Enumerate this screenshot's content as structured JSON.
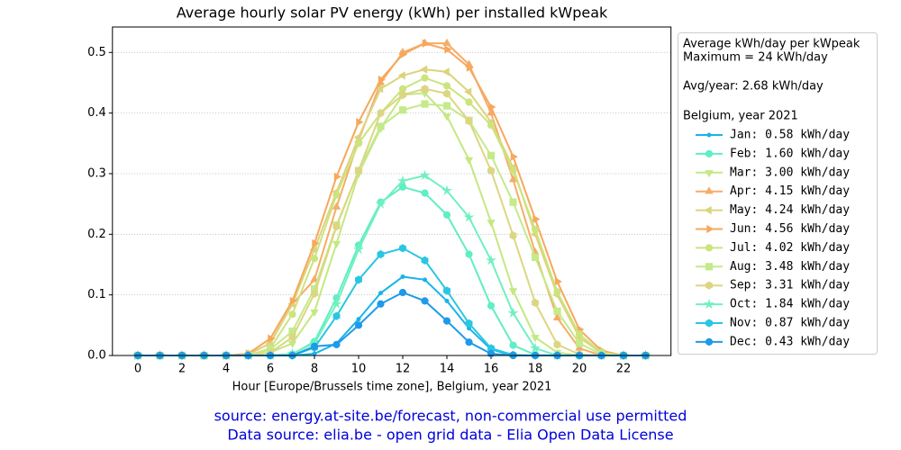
{
  "chart_data": {
    "type": "line",
    "title": "Average hourly solar PV energy (kWh) per installed kWpeak",
    "xlabel": "Hour [Europe/Brussels time zone], Belgium, year 2021",
    "x": [
      0,
      1,
      2,
      3,
      4,
      5,
      6,
      7,
      8,
      9,
      10,
      11,
      12,
      13,
      14,
      15,
      16,
      17,
      18,
      19,
      20,
      21,
      22,
      23
    ],
    "xlim": [
      -1.15,
      24.15
    ],
    "xticks": [
      0,
      2,
      4,
      6,
      8,
      10,
      12,
      14,
      16,
      18,
      20,
      22
    ],
    "ylim": [
      0,
      0.542
    ],
    "yticks": [
      {
        "value": 0,
        "label": "0.0"
      },
      0.1,
      0.2,
      0.3,
      0.4,
      0.5
    ],
    "grid": true,
    "legend_title": [
      "Average kWh/day per kWpeak",
      "Maximum = 24 kWh/day",
      "Avg/year: 2.68 kWh/day",
      "Belgium, year 2021"
    ],
    "legend": "right outside",
    "series": [
      {
        "name": "Jan: 0.58 kWh/day",
        "color": "#19b4e8",
        "marker": "point",
        "values": [
          0,
          0,
          0,
          0,
          0,
          0,
          0,
          0,
          0.003,
          0.02,
          0.06,
          0.103,
          0.13,
          0.125,
          0.09,
          0.045,
          0.01,
          0,
          0,
          0,
          0,
          0,
          0,
          0
        ]
      },
      {
        "name": "Feb: 1.60 kWh/day",
        "color": "#60eec4",
        "marker": "circle",
        "values": [
          0,
          0,
          0,
          0,
          0,
          0,
          0,
          0.002,
          0.023,
          0.095,
          0.182,
          0.253,
          0.278,
          0.268,
          0.232,
          0.167,
          0.082,
          0.017,
          0.001,
          0,
          0,
          0,
          0,
          0
        ]
      },
      {
        "name": "Mar: 3.00 kWh/day",
        "color": "#c4e882",
        "marker": "triangle_down",
        "values": [
          0,
          0,
          0,
          0,
          0,
          0,
          0.005,
          0.02,
          0.072,
          0.185,
          0.3,
          0.375,
          0.43,
          0.433,
          0.395,
          0.323,
          0.22,
          0.107,
          0.03,
          0.005,
          0,
          0,
          0,
          0
        ]
      },
      {
        "name": "Apr: 4.15 kWh/day",
        "color": "#f6ac68",
        "marker": "triangle_up",
        "values": [
          0,
          0,
          0,
          0,
          0,
          0.002,
          0.02,
          0.085,
          0.125,
          0.245,
          0.355,
          0.45,
          0.5,
          0.515,
          0.515,
          0.48,
          0.4,
          0.29,
          0.17,
          0.062,
          0.012,
          0,
          0,
          0
        ]
      },
      {
        "name": "May: 4.24 kWh/day",
        "color": "#dcd47c",
        "marker": "triangle_left",
        "values": [
          0,
          0,
          0,
          0,
          0,
          0.002,
          0.02,
          0.085,
          0.175,
          0.27,
          0.36,
          0.44,
          0.462,
          0.472,
          0.468,
          0.435,
          0.385,
          0.31,
          0.2,
          0.1,
          0.03,
          0.004,
          0,
          0
        ]
      },
      {
        "name": "Jun: 4.56 kWh/day",
        "color": "#f6a85c",
        "marker": "triangle_right",
        "values": [
          0,
          0,
          0,
          0,
          0,
          0.003,
          0.028,
          0.09,
          0.185,
          0.295,
          0.385,
          0.455,
          0.497,
          0.515,
          0.505,
          0.475,
          0.41,
          0.328,
          0.225,
          0.122,
          0.043,
          0.008,
          0,
          0
        ]
      },
      {
        "name": "Jul: 4.02 kWh/day",
        "color": "#cce47e",
        "marker": "circle",
        "values": [
          0,
          0,
          0,
          0,
          0,
          0,
          0.012,
          0.068,
          0.16,
          0.265,
          0.35,
          0.4,
          0.44,
          0.458,
          0.445,
          0.418,
          0.38,
          0.305,
          0.208,
          0.105,
          0.035,
          0.005,
          0,
          0
        ]
      },
      {
        "name": "Aug: 3.48 kWh/day",
        "color": "#c4ea8a",
        "marker": "square",
        "values": [
          0,
          0,
          0,
          0,
          0,
          0,
          0.01,
          0.04,
          0.11,
          0.215,
          0.305,
          0.378,
          0.405,
          0.415,
          0.412,
          0.388,
          0.33,
          0.253,
          0.162,
          0.073,
          0.02,
          0.002,
          0,
          0
        ]
      },
      {
        "name": "Sep: 3.31 kWh/day",
        "color": "#dcd682",
        "marker": "hexagon",
        "values": [
          0,
          0,
          0,
          0,
          0,
          0,
          0.005,
          0.03,
          0.102,
          0.213,
          0.305,
          0.4,
          0.43,
          0.44,
          0.432,
          0.387,
          0.305,
          0.198,
          0.087,
          0.018,
          0.002,
          0,
          0,
          0
        ]
      },
      {
        "name": "Oct: 1.84 kWh/day",
        "color": "#70f0c0",
        "marker": "star",
        "values": [
          0,
          0,
          0,
          0,
          0,
          0,
          0,
          0.003,
          0.02,
          0.085,
          0.175,
          0.25,
          0.288,
          0.297,
          0.272,
          0.228,
          0.157,
          0.07,
          0.012,
          0,
          0,
          0,
          0,
          0
        ]
      },
      {
        "name": "Nov: 0.87 kWh/day",
        "color": "#2ac6e2",
        "marker": "hexagon",
        "values": [
          0,
          0,
          0,
          0,
          0,
          0,
          0,
          0,
          0.013,
          0.065,
          0.125,
          0.167,
          0.177,
          0.157,
          0.107,
          0.053,
          0.012,
          0.001,
          0,
          0,
          0,
          0,
          0,
          0
        ]
      },
      {
        "name": "Dec: 0.43 kWh/day",
        "color": "#1e9ae8",
        "marker": "circle",
        "values": [
          0,
          0,
          0,
          0,
          0,
          0,
          0,
          0,
          0.015,
          0.018,
          0.05,
          0.085,
          0.104,
          0.09,
          0.057,
          0.022,
          0.003,
          0,
          0,
          0,
          0,
          0,
          0,
          0
        ]
      }
    ],
    "footer": [
      "source: energy.at-site.be/forecast, non-commercial use permitted",
      "Data source: elia.be - open grid data - Elia Open Data License"
    ]
  }
}
